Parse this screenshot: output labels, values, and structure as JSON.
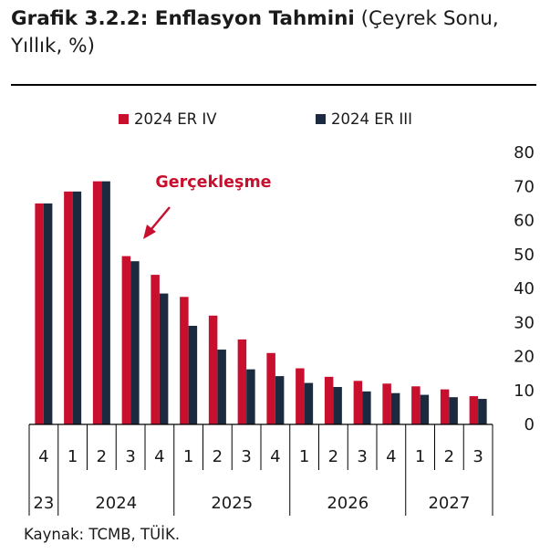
{
  "title": {
    "bold": "Grafik 3.2.2: Enflasyon Tahmini",
    "normal": " (Çeyrek Sonu, Yıllık, %)"
  },
  "source": "Kaynak: TCMB, TÜİK.",
  "chart_data": {
    "type": "bar",
    "categories": [
      "4",
      "1",
      "2",
      "3",
      "4",
      "1",
      "2",
      "3",
      "4",
      "1",
      "2",
      "3",
      "4",
      "1",
      "2",
      "3"
    ],
    "year_groups": [
      {
        "label": "23",
        "span": 1
      },
      {
        "label": "2024",
        "span": 4
      },
      {
        "label": "2025",
        "span": 4
      },
      {
        "label": "2026",
        "span": 4
      },
      {
        "label": "2027",
        "span": 3
      }
    ],
    "series": [
      {
        "name": "2024 ER IV",
        "color": "#c8102e",
        "values": [
          65,
          68.5,
          71.5,
          49.5,
          44,
          37.5,
          32,
          25,
          21,
          16.5,
          14,
          12.8,
          12,
          11.2,
          10.3,
          8.3
        ]
      },
      {
        "name": "2024 ER III",
        "color": "#1b2a3e",
        "values": [
          65,
          68.5,
          71.5,
          48,
          38.5,
          29,
          22,
          16.2,
          14.2,
          12.2,
          11,
          9.7,
          9.2,
          8.7,
          8,
          7.5
        ]
      }
    ],
    "ylim": [
      0,
      80
    ],
    "yticks": [
      0,
      10,
      20,
      30,
      40,
      50,
      60,
      70,
      80
    ],
    "y_axis_side": "right",
    "grid": false,
    "legend_position": "top",
    "annotation": {
      "text": "Gerçekleşme",
      "color": "#c8102e"
    }
  }
}
